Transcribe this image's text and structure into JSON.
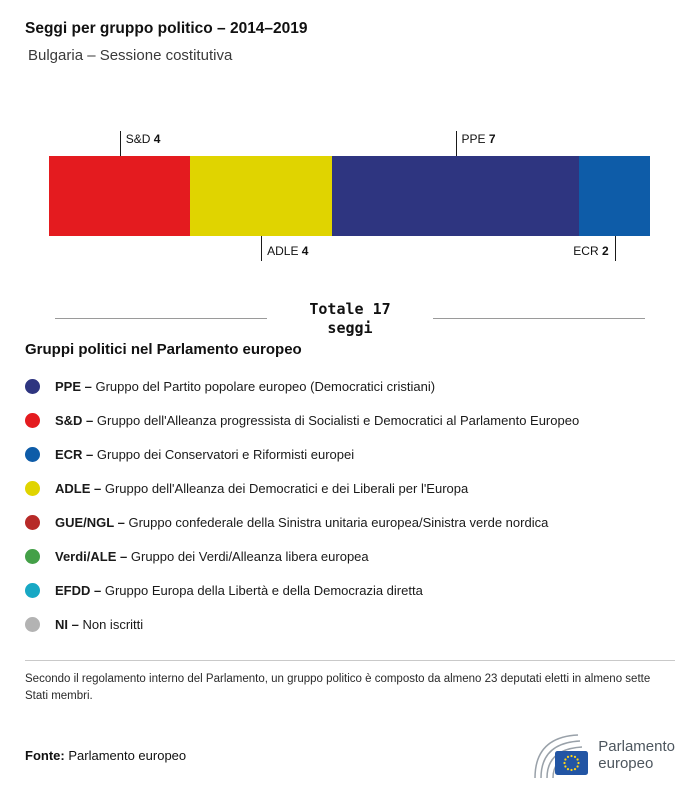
{
  "header": {
    "title": "Seggi per gruppo politico – 2014–2019",
    "subtitle": "Bulgaria – Sessione costitutiva"
  },
  "chart_data": {
    "type": "bar",
    "orientation": "horizontal-stacked",
    "title": "Seggi per gruppo politico – 2014–2019",
    "subtitle": "Bulgaria – Sessione costitutiva",
    "total_seats": 17,
    "segments": [
      {
        "group": "S&D",
        "seats": 4,
        "color": "#e41b1f",
        "label_side": "above",
        "label_align": "right"
      },
      {
        "group": "ADLE",
        "seats": 4,
        "color": "#e0d400",
        "label_side": "below",
        "label_align": "right"
      },
      {
        "group": "PPE",
        "seats": 7,
        "color": "#2e3580",
        "label_side": "above",
        "label_align": "right"
      },
      {
        "group": "ECR",
        "seats": 2,
        "color": "#0e5ca8",
        "label_side": "below",
        "label_align": "left"
      }
    ]
  },
  "total": {
    "line1": "Totale 17",
    "line2": "seggi"
  },
  "legend": {
    "heading": "Gruppi politici nel Parlamento europeo",
    "items": [
      {
        "abbr": "PPE",
        "name": "Gruppo del Partito popolare europeo (Democratici cristiani)",
        "color": "#2e3580"
      },
      {
        "abbr": "S&D",
        "name": "Gruppo dell'Alleanza progressista di Socialisti e Democratici al Parlamento Europeo",
        "color": "#e41b1f"
      },
      {
        "abbr": "ECR",
        "name": "Gruppo dei Conservatori e Riformisti europei",
        "color": "#0e5ca8"
      },
      {
        "abbr": "ADLE",
        "name": "Gruppo dell'Alleanza dei Democratici e dei Liberali per l'Europa",
        "color": "#e0d400"
      },
      {
        "abbr": "GUE/NGL",
        "name": "Gruppo confederale della Sinistra unitaria europea/Sinistra verde nordica",
        "color": "#b72a28"
      },
      {
        "abbr": "Verdi/ALE",
        "name": "Gruppo dei Verdi/Alleanza libera europea",
        "color": "#44a048"
      },
      {
        "abbr": "EFDD",
        "name": "Gruppo Europa della Libertà e della Democrazia diretta",
        "color": "#18a8c4"
      },
      {
        "abbr": "NI",
        "name": "Non iscritti",
        "color": "#b3b3b3"
      }
    ]
  },
  "footnote": "Secondo il regolamento interno del Parlamento, un gruppo politico è composto da almeno 23 deputati eletti in almeno sette Stati membri.",
  "source": {
    "label": "Fonte:",
    "value": "Parlamento europeo"
  },
  "logo": {
    "line1": "Parlamento",
    "line2": "europeo"
  }
}
